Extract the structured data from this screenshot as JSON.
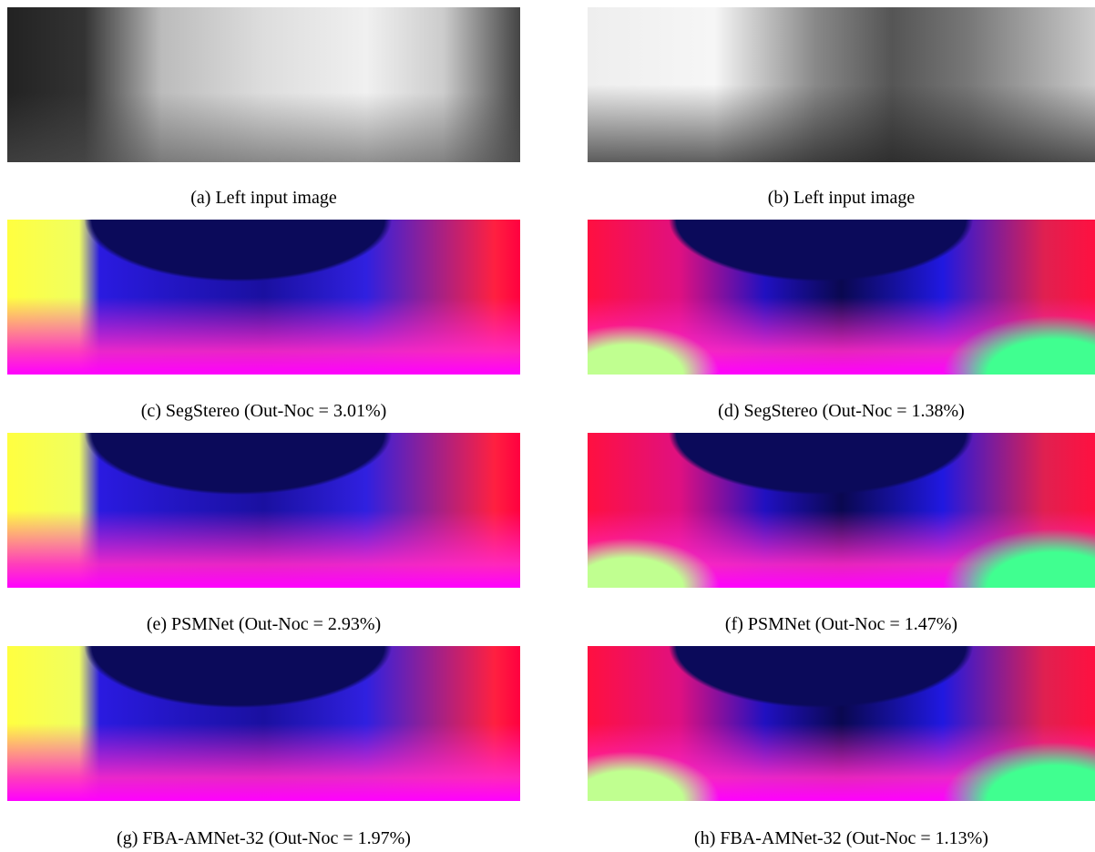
{
  "panels": [
    {
      "caption": "(a) Left input image"
    },
    {
      "caption": "(b) Left input image"
    },
    {
      "caption": "(c) SegStereo (Out-Noc = 3.01%)"
    },
    {
      "caption": "(d) SegStereo (Out-Noc = 1.38%)"
    },
    {
      "caption": "(e) PSMNet (Out-Noc = 2.93%)"
    },
    {
      "caption": "(f) PSMNet (Out-Noc = 1.47%)"
    },
    {
      "caption": "(g) FBA-AMNet-32 (Out-Noc = 1.97%)"
    },
    {
      "caption": "(h) FBA-AMNet-32 (Out-Noc = 1.13%)"
    }
  ]
}
